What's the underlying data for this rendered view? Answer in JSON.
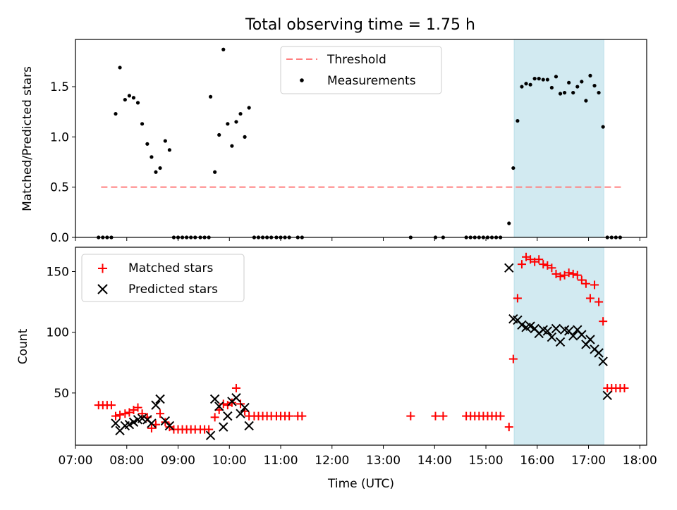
{
  "figure": {
    "title": "Total observing time = 1.75 h"
  },
  "chart_data": [
    {
      "type": "scatter",
      "panel": "top",
      "ylabel": "Matched/Predicted stars",
      "xlabel": "",
      "xlim": [
        "07:00",
        "18:08"
      ],
      "ylim": [
        0,
        1.97
      ],
      "yticks": [
        0.0,
        0.5,
        1.0,
        1.5
      ],
      "ytick_labels": [
        "0.0",
        "0.5",
        "1.0",
        "1.5"
      ],
      "grid": false,
      "legend": {
        "placement": "top-center",
        "entries": [
          "Threshold",
          "Measurements"
        ]
      },
      "shaded_span": {
        "x": [
          "15:33",
          "17:18"
        ],
        "color": "#add8e6"
      },
      "threshold": {
        "name": "Threshold",
        "x": [
          "07:30",
          "17:38"
        ],
        "y": 0.5,
        "color": "#ff7f7f",
        "style": "dashed"
      },
      "series": [
        {
          "name": "Measurements",
          "color": "#000000",
          "marker": "dot",
          "points": [
            [
              "07:27",
              0
            ],
            [
              "07:32",
              0
            ],
            [
              "07:37",
              0
            ],
            [
              "07:42",
              0
            ],
            [
              "07:47",
              1.23
            ],
            [
              "07:52",
              1.69
            ],
            [
              "07:58",
              1.37
            ],
            [
              "08:03",
              1.41
            ],
            [
              "08:08",
              1.39
            ],
            [
              "08:13",
              1.34
            ],
            [
              "08:18",
              1.13
            ],
            [
              "08:24",
              0.93
            ],
            [
              "08:29",
              0.8
            ],
            [
              "08:34",
              0.65
            ],
            [
              "08:39",
              0.69
            ],
            [
              "08:45",
              0.96
            ],
            [
              "08:50",
              0.87
            ],
            [
              "08:55",
              0
            ],
            [
              "09:00",
              0
            ],
            [
              "09:05",
              0
            ],
            [
              "09:10",
              0
            ],
            [
              "09:15",
              0
            ],
            [
              "09:20",
              0
            ],
            [
              "09:26",
              0
            ],
            [
              "09:31",
              0
            ],
            [
              "09:36",
              0
            ],
            [
              "09:38",
              1.4
            ],
            [
              "09:43",
              0.65
            ],
            [
              "09:48",
              1.02
            ],
            [
              "09:53",
              1.87
            ],
            [
              "09:58",
              1.13
            ],
            [
              "10:03",
              0.91
            ],
            [
              "10:08",
              1.15
            ],
            [
              "10:13",
              1.23
            ],
            [
              "10:18",
              1.0
            ],
            [
              "10:23",
              1.29
            ],
            [
              "10:29",
              0
            ],
            [
              "10:34",
              0
            ],
            [
              "10:39",
              0
            ],
            [
              "10:44",
              0
            ],
            [
              "10:49",
              0
            ],
            [
              "10:55",
              0
            ],
            [
              "11:00",
              0
            ],
            [
              "11:05",
              0
            ],
            [
              "11:10",
              0
            ],
            [
              "11:20",
              0
            ],
            [
              "11:25",
              0
            ],
            [
              "13:32",
              0
            ],
            [
              "14:01",
              0
            ],
            [
              "14:10",
              0
            ],
            [
              "14:37",
              0
            ],
            [
              "14:42",
              0
            ],
            [
              "14:47",
              0
            ],
            [
              "14:52",
              0
            ],
            [
              "14:57",
              0
            ],
            [
              "15:02",
              0
            ],
            [
              "15:07",
              0
            ],
            [
              "15:12",
              0
            ],
            [
              "15:17",
              0
            ],
            [
              "15:27",
              0.14
            ],
            [
              "15:32",
              0.69
            ],
            [
              "15:37",
              1.16
            ],
            [
              "15:42",
              1.5
            ],
            [
              "15:47",
              1.53
            ],
            [
              "15:52",
              1.52
            ],
            [
              "15:57",
              1.58
            ],
            [
              "16:02",
              1.58
            ],
            [
              "16:07",
              1.57
            ],
            [
              "16:12",
              1.57
            ],
            [
              "16:17",
              1.49
            ],
            [
              "16:22",
              1.6
            ],
            [
              "16:27",
              1.43
            ],
            [
              "16:32",
              1.44
            ],
            [
              "16:37",
              1.54
            ],
            [
              "16:42",
              1.44
            ],
            [
              "16:47",
              1.5
            ],
            [
              "16:52",
              1.55
            ],
            [
              "16:57",
              1.36
            ],
            [
              "17:02",
              1.61
            ],
            [
              "17:07",
              1.51
            ],
            [
              "17:12",
              1.44
            ],
            [
              "17:17",
              1.1
            ],
            [
              "17:22",
              0
            ],
            [
              "17:27",
              0
            ],
            [
              "17:32",
              0
            ],
            [
              "17:37",
              0
            ]
          ]
        }
      ]
    },
    {
      "type": "scatter",
      "panel": "bottom",
      "xlabel": "Time (UTC)",
      "ylabel": "Count",
      "xlim": [
        "07:00",
        "18:08"
      ],
      "ylim": [
        7,
        170
      ],
      "xticks": [
        "07:00",
        "08:00",
        "09:00",
        "10:00",
        "11:00",
        "12:00",
        "13:00",
        "14:00",
        "15:00",
        "16:00",
        "17:00",
        "18:00"
      ],
      "yticks": [
        50,
        100,
        150
      ],
      "ytick_labels": [
        "50",
        "100",
        "150"
      ],
      "grid": false,
      "legend": {
        "placement": "top-left",
        "entries": [
          "Matched stars",
          "Predicted stars"
        ]
      },
      "shaded_span": {
        "x": [
          "15:33",
          "17:18"
        ],
        "color": "#add8e6"
      },
      "series": [
        {
          "name": "Matched stars",
          "color": "#ff0000",
          "marker": "plus",
          "points": [
            [
              "07:27",
              40
            ],
            [
              "07:32",
              40
            ],
            [
              "07:37",
              40
            ],
            [
              "07:42",
              40
            ],
            [
              "07:47",
              31
            ],
            [
              "07:52",
              32
            ],
            [
              "07:58",
              33
            ],
            [
              "08:03",
              34
            ],
            [
              "08:08",
              36
            ],
            [
              "08:13",
              38
            ],
            [
              "08:18",
              33
            ],
            [
              "08:24",
              30
            ],
            [
              "08:29",
              21
            ],
            [
              "08:34",
              24
            ],
            [
              "08:39",
              33
            ],
            [
              "08:45",
              26
            ],
            [
              "08:50",
              22
            ],
            [
              "08:55",
              20
            ],
            [
              "09:00",
              20
            ],
            [
              "09:05",
              20
            ],
            [
              "09:10",
              20
            ],
            [
              "09:15",
              20
            ],
            [
              "09:20",
              20
            ],
            [
              "09:26",
              20
            ],
            [
              "09:31",
              20
            ],
            [
              "09:36",
              20
            ],
            [
              "09:43",
              30
            ],
            [
              "09:48",
              36
            ],
            [
              "09:53",
              41
            ],
            [
              "09:58",
              40
            ],
            [
              "10:03",
              42
            ],
            [
              "10:08",
              54
            ],
            [
              "10:13",
              41
            ],
            [
              "10:18",
              35
            ],
            [
              "10:23",
              31
            ],
            [
              "10:29",
              31
            ],
            [
              "10:34",
              31
            ],
            [
              "10:39",
              31
            ],
            [
              "10:44",
              31
            ],
            [
              "10:49",
              31
            ],
            [
              "10:55",
              31
            ],
            [
              "11:00",
              31
            ],
            [
              "11:05",
              31
            ],
            [
              "11:10",
              31
            ],
            [
              "11:20",
              31
            ],
            [
              "11:25",
              31
            ],
            [
              "13:32",
              31
            ],
            [
              "14:01",
              31
            ],
            [
              "14:10",
              31
            ],
            [
              "14:37",
              31
            ],
            [
              "14:42",
              31
            ],
            [
              "14:47",
              31
            ],
            [
              "14:52",
              31
            ],
            [
              "14:57",
              31
            ],
            [
              "15:02",
              31
            ],
            [
              "15:07",
              31
            ],
            [
              "15:12",
              31
            ],
            [
              "15:17",
              31
            ],
            [
              "15:27",
              22
            ],
            [
              "15:32",
              78
            ],
            [
              "15:37",
              128
            ],
            [
              "15:42",
              156
            ],
            [
              "15:47",
              162
            ],
            [
              "15:52",
              160
            ],
            [
              "15:57",
              158
            ],
            [
              "16:02",
              160
            ],
            [
              "16:07",
              156
            ],
            [
              "16:12",
              155
            ],
            [
              "16:17",
              153
            ],
            [
              "16:22",
              148
            ],
            [
              "16:27",
              146
            ],
            [
              "16:32",
              147
            ],
            [
              "16:37",
              149
            ],
            [
              "16:42",
              148
            ],
            [
              "16:47",
              147
            ],
            [
              "16:52",
              143
            ],
            [
              "16:57",
              140
            ],
            [
              "17:02",
              128
            ],
            [
              "17:07",
              139
            ],
            [
              "17:12",
              125
            ],
            [
              "17:17",
              109
            ],
            [
              "17:22",
              54
            ],
            [
              "17:27",
              54
            ],
            [
              "17:32",
              54
            ],
            [
              "17:37",
              54
            ],
            [
              "17:42",
              54
            ]
          ]
        },
        {
          "name": "Predicted stars",
          "color": "#000000",
          "marker": "x",
          "points": [
            [
              "07:47",
              25
            ],
            [
              "07:52",
              19
            ],
            [
              "07:58",
              23
            ],
            [
              "08:03",
              24
            ],
            [
              "08:08",
              26
            ],
            [
              "08:13",
              28
            ],
            [
              "08:18",
              29
            ],
            [
              "08:24",
              28
            ],
            [
              "08:29",
              25
            ],
            [
              "08:34",
              40
            ],
            [
              "08:39",
              45
            ],
            [
              "08:45",
              27
            ],
            [
              "08:50",
              23
            ],
            [
              "09:38",
              15
            ],
            [
              "09:43",
              45
            ],
            [
              "09:48",
              39
            ],
            [
              "09:53",
              22
            ],
            [
              "09:58",
              31
            ],
            [
              "10:03",
              43
            ],
            [
              "10:08",
              46
            ],
            [
              "10:13",
              33
            ],
            [
              "10:18",
              38
            ],
            [
              "10:23",
              23
            ],
            [
              "15:27",
              153
            ],
            [
              "15:32",
              111
            ],
            [
              "15:37",
              110
            ],
            [
              "15:42",
              106
            ],
            [
              "15:47",
              104
            ],
            [
              "15:52",
              105
            ],
            [
              "15:57",
              103
            ],
            [
              "16:02",
              99
            ],
            [
              "16:07",
              102
            ],
            [
              "16:12",
              101
            ],
            [
              "16:17",
              96
            ],
            [
              "16:22",
              103
            ],
            [
              "16:27",
              92
            ],
            [
              "16:32",
              102
            ],
            [
              "16:37",
              101
            ],
            [
              "16:42",
              97
            ],
            [
              "16:47",
              102
            ],
            [
              "16:52",
              98
            ],
            [
              "16:57",
              90
            ],
            [
              "17:02",
              94
            ],
            [
              "17:07",
              86
            ],
            [
              "17:12",
              83
            ],
            [
              "17:17",
              76
            ],
            [
              "17:22",
              48
            ]
          ]
        }
      ]
    }
  ]
}
